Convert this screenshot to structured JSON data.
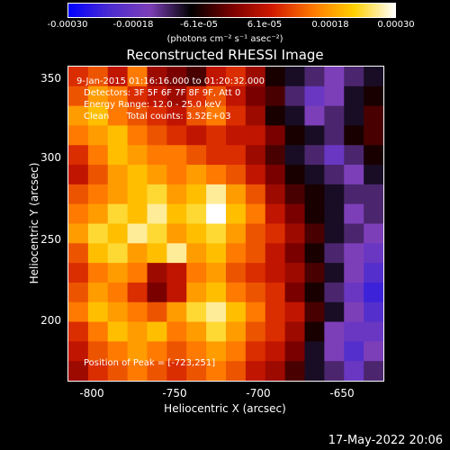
{
  "colorbar": {
    "ticks": [
      "-0.00030",
      "-0.00018",
      "-6.1e-05",
      "6.1e-05",
      "0.00018",
      "0.00030"
    ],
    "units": "(photons cm⁻² s⁻¹ asec⁻²)",
    "stops": [
      "#0000ff",
      "#4b2bd0",
      "#7d3fb8",
      "#000000",
      "#7a0000",
      "#d11a00",
      "#ff7a00",
      "#ffd000",
      "#ffffff"
    ]
  },
  "title": "Reconstructed RHESSI Image",
  "annotations": {
    "time": "9-Jan-2015 01:16:16.000 to 01:20:32.000",
    "detectors": "Detectors: 3F 5F 6F 7F 8F 9F, Att 0",
    "energy": "Energy Range: 12.0 - 25.0 keV",
    "clean": "Clean      Total counts: 3.52E+03",
    "peak": "Position of Peak = [-723,251]"
  },
  "axes": {
    "xlabel": "Heliocentric X (arcsec)",
    "ylabel": "Heliocentric Y (arcsec)",
    "xticks": [
      "-800",
      "-750",
      "-700",
      "-650"
    ],
    "yticks": [
      "350",
      "300",
      "250",
      "200"
    ],
    "xlim": [
      -815,
      -625
    ],
    "ylim": [
      160,
      355
    ]
  },
  "footer": "17-May-2022 20:06",
  "chart_data": {
    "type": "heatmap",
    "title": "Reconstructed RHESSI Image",
    "xlabel": "Heliocentric X (arcsec)",
    "ylabel": "Heliocentric Y (arcsec)",
    "xlim": [
      -815,
      -625
    ],
    "ylim": [
      160,
      355
    ],
    "zlim": [
      -0.0003,
      0.0003
    ],
    "peak": [
      -723,
      251
    ],
    "grid_cols": 16,
    "grid_rows": 16,
    "values": [
      [
        0.3,
        0.4,
        0.2,
        0.5,
        0.1,
        0.0,
        -0.1,
        0.2,
        0.3,
        0.1,
        -0.2,
        -0.3,
        -0.4,
        -0.5,
        -0.4,
        -0.3
      ],
      [
        0.4,
        0.6,
        0.5,
        0.3,
        0.2,
        0.1,
        0.3,
        0.4,
        0.2,
        0.0,
        -0.1,
        -0.4,
        -0.6,
        -0.5,
        -0.3,
        -0.2
      ],
      [
        0.6,
        0.7,
        0.5,
        0.4,
        0.3,
        0.2,
        0.4,
        0.5,
        0.3,
        0.1,
        -0.2,
        -0.3,
        -0.5,
        -0.4,
        -0.3,
        -0.1
      ],
      [
        0.5,
        0.6,
        0.7,
        0.5,
        0.4,
        0.3,
        0.2,
        0.3,
        0.2,
        0.2,
        0.0,
        -0.2,
        -0.3,
        -0.4,
        -0.2,
        -0.1
      ],
      [
        0.3,
        0.5,
        0.7,
        0.6,
        0.5,
        0.5,
        0.4,
        0.3,
        0.3,
        0.1,
        -0.1,
        -0.3,
        -0.4,
        -0.6,
        -0.4,
        -0.2
      ],
      [
        0.2,
        0.4,
        0.6,
        0.7,
        0.6,
        0.5,
        0.6,
        0.5,
        0.4,
        0.2,
        0.0,
        -0.2,
        -0.3,
        -0.4,
        -0.5,
        -0.3
      ],
      [
        0.4,
        0.5,
        0.6,
        0.7,
        0.8,
        0.6,
        0.7,
        0.9,
        0.6,
        0.4,
        0.1,
        -0.1,
        -0.2,
        -0.3,
        -0.4,
        -0.4
      ],
      [
        0.5,
        0.6,
        0.8,
        0.7,
        0.9,
        0.7,
        0.8,
        1.0,
        0.7,
        0.5,
        0.2,
        0.0,
        -0.2,
        -0.3,
        -0.5,
        -0.4
      ],
      [
        0.6,
        0.8,
        0.7,
        0.9,
        0.8,
        0.6,
        0.7,
        0.8,
        0.6,
        0.4,
        0.3,
        0.1,
        -0.1,
        -0.3,
        -0.4,
        -0.5
      ],
      [
        0.4,
        0.7,
        0.8,
        0.6,
        0.7,
        0.9,
        0.6,
        0.7,
        0.5,
        0.4,
        0.2,
        0.0,
        -0.2,
        -0.4,
        -0.5,
        -0.6
      ],
      [
        0.3,
        0.5,
        0.6,
        0.5,
        0.1,
        0.2,
        0.5,
        0.6,
        0.4,
        0.3,
        0.2,
        0.1,
        -0.1,
        -0.3,
        -0.5,
        -0.7
      ],
      [
        0.4,
        0.6,
        0.5,
        0.3,
        0.0,
        0.2,
        0.6,
        0.7,
        0.5,
        0.4,
        0.3,
        0.0,
        -0.2,
        -0.4,
        -0.6,
        -0.8
      ],
      [
        0.5,
        0.7,
        0.6,
        0.5,
        0.4,
        0.6,
        0.8,
        0.9,
        0.7,
        0.5,
        0.3,
        0.2,
        -0.1,
        -0.3,
        -0.5,
        -0.7
      ],
      [
        0.3,
        0.5,
        0.7,
        0.6,
        0.7,
        0.5,
        0.6,
        0.8,
        0.6,
        0.4,
        0.3,
        0.1,
        -0.2,
        -0.5,
        -0.6,
        -0.6
      ],
      [
        0.2,
        0.4,
        0.5,
        0.6,
        0.5,
        0.4,
        0.5,
        0.6,
        0.5,
        0.3,
        0.2,
        0.0,
        -0.3,
        -0.5,
        -0.7,
        -0.5
      ],
      [
        0.1,
        0.3,
        0.4,
        0.5,
        0.4,
        0.3,
        0.4,
        0.5,
        0.4,
        0.2,
        0.1,
        -0.1,
        -0.3,
        -0.4,
        -0.6,
        -0.4
      ]
    ]
  }
}
